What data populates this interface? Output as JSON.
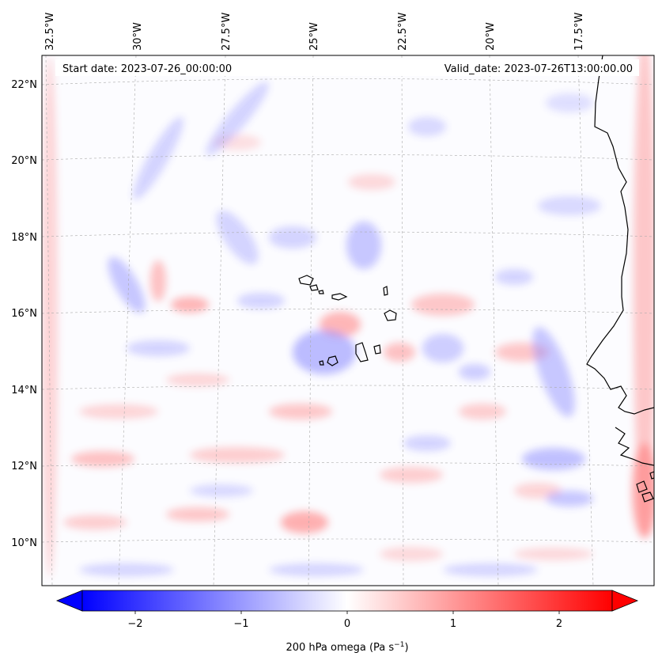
{
  "header": {
    "start_date": "Start date: 2023-07-26_00:00:00",
    "valid_date": "Valid_date: 2023-07-26T13:00:00.00"
  },
  "longitude_labels": [
    "32.5°W",
    "30°W",
    "27.5°W",
    "25°W",
    "22.5°W",
    "20°W",
    "17.5°W"
  ],
  "latitude_labels": [
    "22°N",
    "20°N",
    "18°N",
    "16°N",
    "14°N",
    "12°N",
    "10°N"
  ],
  "map": {
    "region": "Eastern tropical Atlantic, Cape Verde islands and West African coast",
    "extent": {
      "lon_min": -33.0,
      "lon_max": -15.5,
      "lat_min": 8.9,
      "lat_max": 22.8
    }
  },
  "colorbar": {
    "ticks": [
      "−2",
      "−1",
      "0",
      "1",
      "2"
    ],
    "tick_values": [
      -2,
      -1,
      0,
      1,
      2
    ],
    "range": [
      -2.5,
      2.5
    ],
    "label_main": "200 hPa omega (Pa s",
    "label_sup": "−1",
    "label_end": ")",
    "colormap": "bwr"
  },
  "colors": {
    "negative": "#0000ff",
    "zero": "#ffffff",
    "positive": "#ff0000",
    "coastline": "#000000",
    "gridline": "#aaaaaa"
  }
}
